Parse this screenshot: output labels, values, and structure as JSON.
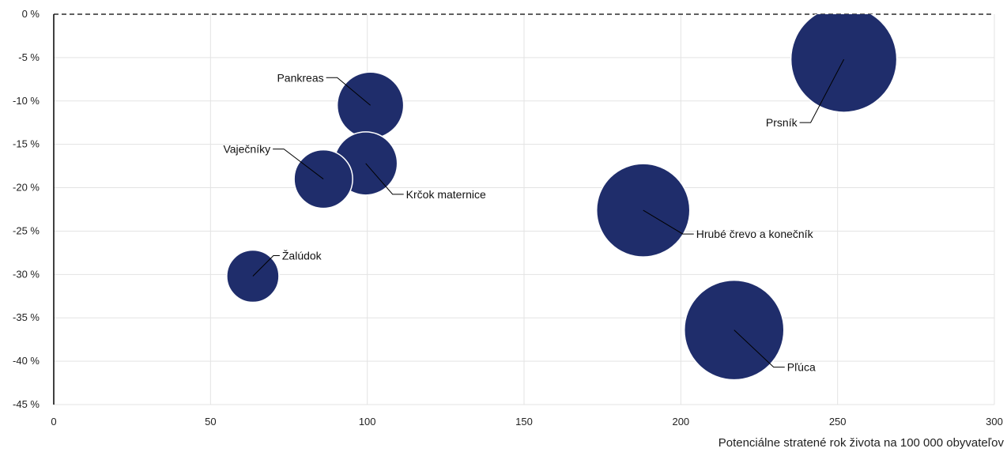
{
  "chart_data": {
    "type": "bubble",
    "xlabel": "Potenciálne stratené rok života na 100 000 obyvateľov",
    "ylabel": "",
    "xlim": [
      0,
      300
    ],
    "ylim": [
      -45,
      0
    ],
    "x_ticks": [
      0,
      50,
      100,
      150,
      200,
      250,
      300
    ],
    "x_tick_labels": [
      "0",
      "50",
      "100",
      "150",
      "200",
      "250",
      "300"
    ],
    "y_ticks": [
      0,
      -5,
      -10,
      -15,
      -20,
      -25,
      -30,
      -35,
      -40,
      -45
    ],
    "y_tick_labels": [
      "0 %",
      "-5 %",
      "-10 %",
      "-15 %",
      "-20 %",
      "-25 %",
      "-30 %",
      "-35 %",
      "-40 %",
      "-45 %"
    ],
    "grid": true,
    "bubble_color": "#1f2d6b",
    "points": [
      {
        "label": "Prsník",
        "x": 252,
        "y": -5.2,
        "size": 67,
        "label_side": "left"
      },
      {
        "label": "Pankreas",
        "x": 101,
        "y": -10.5,
        "size": 42,
        "label_side": "left"
      },
      {
        "label": "Krčok maternice",
        "x": 99.5,
        "y": -17.2,
        "size": 40,
        "label_side": "right"
      },
      {
        "label": "Vaječníky",
        "x": 86,
        "y": -19,
        "size": 37,
        "label_side": "left"
      },
      {
        "label": "Hrubé črevo a konečník",
        "x": 188,
        "y": -22.6,
        "size": 59,
        "label_side": "right"
      },
      {
        "label": "Žalúdok",
        "x": 63.5,
        "y": -30.2,
        "size": 33,
        "label_side": "right"
      },
      {
        "label": "Pľúca",
        "x": 217,
        "y": -36.4,
        "size": 63,
        "label_side": "right"
      }
    ]
  }
}
